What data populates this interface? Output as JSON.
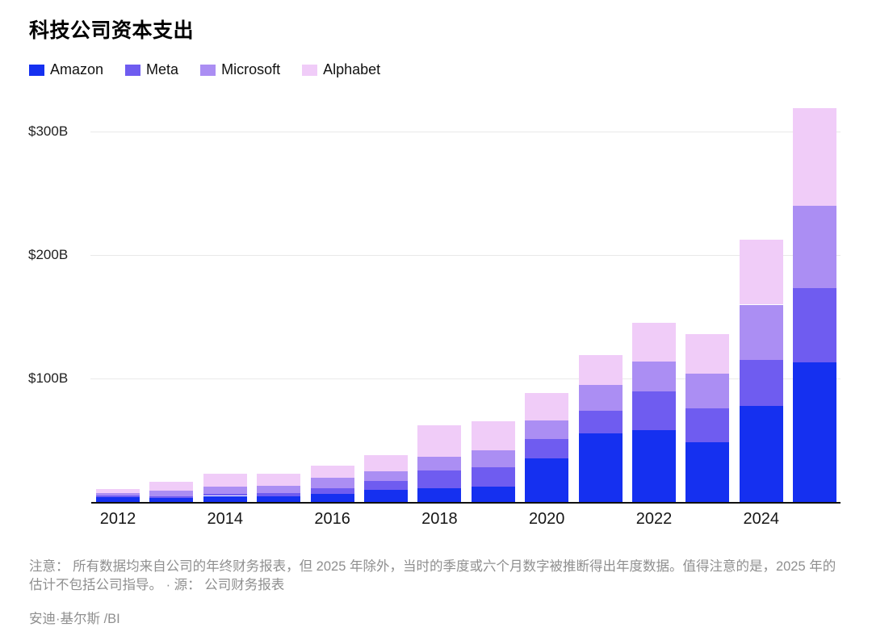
{
  "title": "科技公司资本支出",
  "colors": {
    "amazon": "#1530f0",
    "meta": "#6f5cf0",
    "microsoft": "#ab8ef3",
    "alphabet": "#f0ccf8",
    "grid": "#e9e9e9",
    "axis": "#111111",
    "footnote_gray": "#8f8f8f"
  },
  "chart_data": {
    "type": "bar",
    "stacked": true,
    "title": "科技公司资本支出",
    "units": "$B",
    "categories": [
      2012,
      2013,
      2014,
      2015,
      2016,
      2017,
      2018,
      2019,
      2020,
      2021,
      2022,
      2023,
      2024,
      2025
    ],
    "series": [
      {
        "name": "Amazon",
        "color": "#1530f0",
        "values": [
          3.8,
          3.4,
          4.9,
          4.6,
          6.7,
          10.1,
          11.3,
          12.7,
          35.0,
          55.4,
          58.3,
          48.4,
          78.0,
          113.0
        ]
      },
      {
        "name": "Meta",
        "color": "#6f5cf0",
        "values": [
          1.2,
          1.4,
          1.8,
          2.5,
          4.5,
          6.7,
          13.9,
          15.1,
          15.7,
          18.6,
          31.4,
          27.3,
          37.3,
          60.0
        ]
      },
      {
        "name": "Microsoft",
        "color": "#ab8ef3",
        "values": [
          2.3,
          4.3,
          5.5,
          5.9,
          8.3,
          8.1,
          11.6,
          13.9,
          15.4,
          20.6,
          23.9,
          28.1,
          44.5,
          67.0
        ]
      },
      {
        "name": "Alphabet",
        "color": "#f0ccf8",
        "values": [
          3.3,
          7.4,
          11.0,
          9.9,
          10.2,
          13.2,
          25.1,
          23.5,
          22.3,
          24.6,
          31.5,
          32.3,
          52.5,
          79.0
        ]
      }
    ],
    "yticks": [
      {
        "value": 100,
        "label": "$100B"
      },
      {
        "value": 200,
        "label": "$200B"
      },
      {
        "value": 300,
        "label": "$300B"
      }
    ],
    "xtick_labeled_indices": [
      0,
      2,
      4,
      6,
      8,
      10,
      12
    ],
    "xtick_labels": [
      "2012",
      "2014",
      "2016",
      "2018",
      "2020",
      "2022",
      "2024"
    ],
    "ylim": [
      0,
      325
    ],
    "grid": "horizontal",
    "legend_position": "top-left",
    "xlabel": "",
    "ylabel": ""
  },
  "footnote": "注意： 所有数据均来自公司的年终财务报表，但 2025 年除外，当时的季度或六个月数字被推断得出年度数据。值得注意的是，2025 年的估计不包括公司指导。 · 源： 公司财务报表",
  "byline": "安迪·基尔斯 /BI"
}
